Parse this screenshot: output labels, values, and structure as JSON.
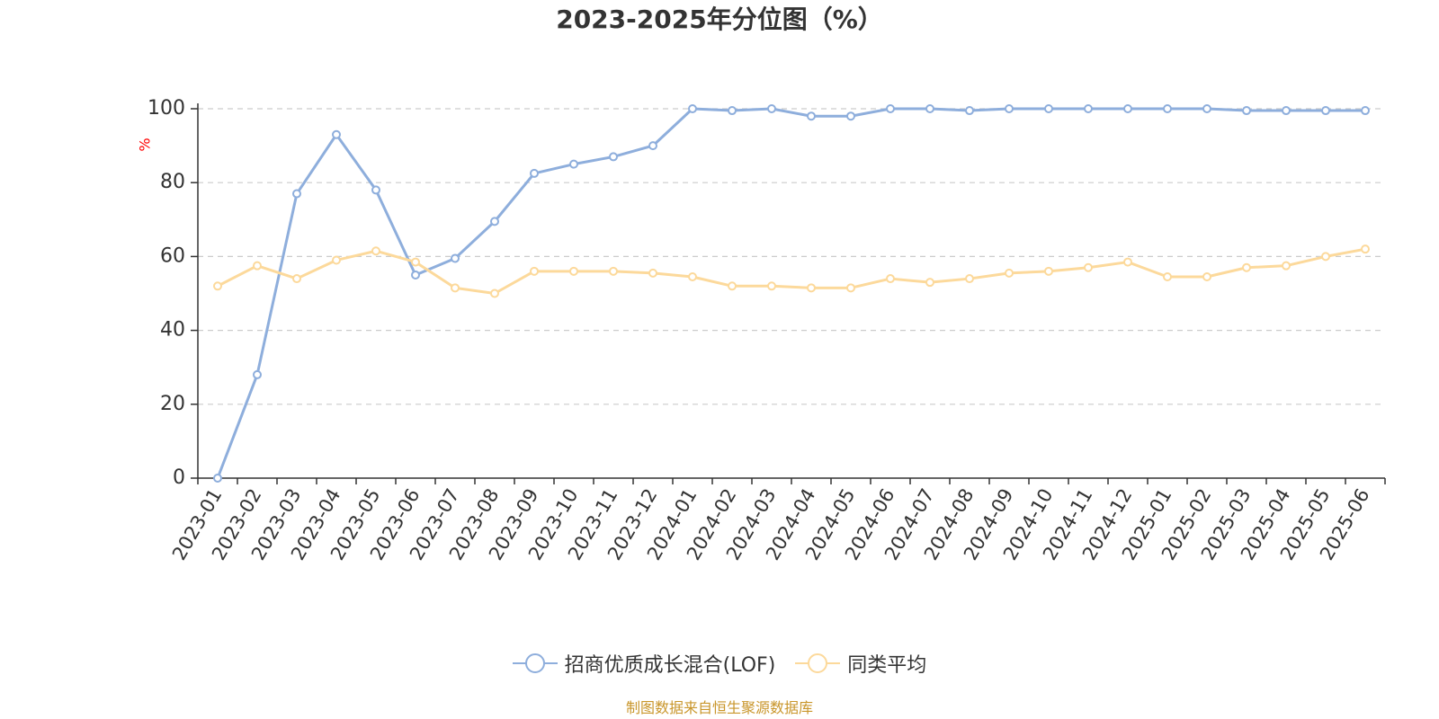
{
  "chart_data": {
    "type": "line",
    "title": "2023-2025年分位图（%）",
    "ylabel": "%",
    "xlabel": "",
    "ylim": [
      0,
      100
    ],
    "yticks": [
      0,
      20,
      40,
      60,
      80,
      100
    ],
    "grid": true,
    "legend_position": "bottom",
    "categories": [
      "2023-01",
      "2023-02",
      "2023-03",
      "2023-04",
      "2023-05",
      "2023-06",
      "2023-07",
      "2023-08",
      "2023-09",
      "2023-10",
      "2023-11",
      "2023-12",
      "2024-01",
      "2024-02",
      "2024-03",
      "2024-04",
      "2024-05",
      "2024-06",
      "2024-07",
      "2024-08",
      "2024-09",
      "2024-10",
      "2024-11",
      "2024-12",
      "2025-01",
      "2025-02",
      "2025-03",
      "2025-04",
      "2025-05",
      "2025-06"
    ],
    "series": [
      {
        "name": "招商优质成长混合(LOF)",
        "color": "#8eaedc",
        "values": [
          0,
          28,
          77,
          93,
          78,
          55,
          59.5,
          69.5,
          82.5,
          85,
          87,
          90,
          100,
          99.5,
          100,
          98,
          98,
          100,
          100,
          99.5,
          100,
          100,
          100,
          100,
          100,
          100,
          99.5,
          99.5,
          99.5,
          99.5
        ]
      },
      {
        "name": "同类平均",
        "color": "#fcd99b",
        "values": [
          52,
          57.5,
          54,
          59,
          61.5,
          58.5,
          51.5,
          50,
          56,
          56,
          56,
          55.5,
          54.5,
          52,
          52,
          51.5,
          51.5,
          54,
          53,
          54,
          55.5,
          56,
          57,
          58.5,
          54.5,
          54.5,
          57,
          57.5,
          60,
          62
        ]
      }
    ]
  },
  "source_note": "制图数据来自恒生聚源数据库"
}
